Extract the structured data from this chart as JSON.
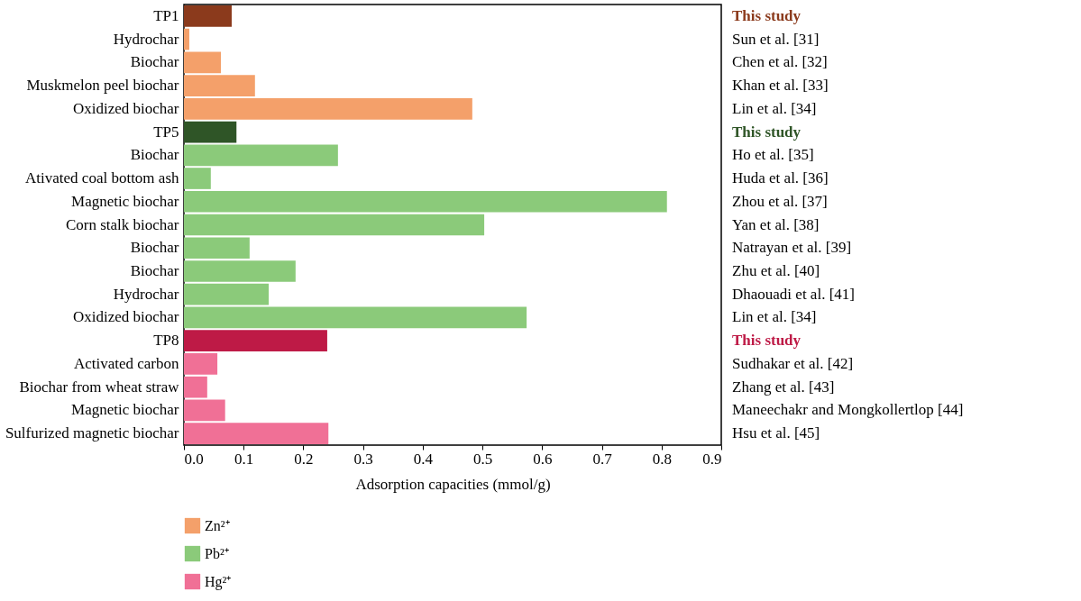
{
  "chart_data": {
    "type": "bar",
    "orientation": "horizontal",
    "xlabel": "Adsorption capacities (mmol/g)",
    "categories": [
      "TP1",
      "Hydrochar",
      "Biochar",
      "Muskmelon peel biochar",
      "Oxidized biochar",
      "TP5",
      "Biochar",
      "Ativated coal bottom ash",
      "Magnetic biochar",
      "Corn stalk biochar",
      "Biochar",
      "Biochar",
      "Hydrochar",
      "Oxidized biochar",
      "TP8",
      "Activated carbon",
      "Biochar from wheat straw",
      "Magnetic biochar",
      "Sulfurized magnetic biochar"
    ],
    "y2_categories": [
      "This study",
      "Sun et al. [31]",
      "Chen et al. [32]",
      "Khan et al. [33]",
      "Lin et al. [34]",
      "This study",
      "Ho et al. [35]",
      "Huda et al. [36]",
      "Zhou et al. [37]",
      "Yan et al. [38]",
      "Natrayan et al. [39]",
      "Zhu et al. [40]",
      "Dhaouadi et al. [41]",
      "Lin et al. [34]",
      "This study",
      "Sudhakar et al. [42]",
      "Zhang et al. [43]",
      "Maneechakr and Mongkollertlop [44]",
      "Hsu et al. [45]"
    ],
    "series": [
      {
        "name": "Zn²⁺",
        "color": "#f4a06a",
        "colors": [
          "#8b3a1c",
          "#f4a06a",
          "#f4a06a",
          "#f4a06a",
          "#f4a06a",
          null,
          null,
          null,
          null,
          null,
          null,
          null,
          null,
          null,
          null,
          null,
          null,
          null,
          null
        ],
        "values": [
          0.08,
          0.009,
          0.062,
          0.119,
          0.483,
          null,
          null,
          null,
          null,
          null,
          null,
          null,
          null,
          null,
          null,
          null,
          null,
          null,
          null
        ]
      },
      {
        "name": "Pb²⁺",
        "color": "#8bca7a",
        "colors": [
          null,
          null,
          null,
          null,
          null,
          "#2f5527",
          "#8bca7a",
          "#8bca7a",
          "#8bca7a",
          "#8bca7a",
          "#8bca7a",
          "#8bca7a",
          "#8bca7a",
          "#8bca7a",
          null,
          null,
          null,
          null,
          null
        ],
        "values": [
          null,
          null,
          null,
          null,
          null,
          0.088,
          0.258,
          0.045,
          0.809,
          0.503,
          0.11,
          0.187,
          0.142,
          0.574,
          null,
          null,
          null,
          null,
          null
        ]
      },
      {
        "name": "Hg²⁺",
        "color": "#f07096",
        "colors": [
          null,
          null,
          null,
          null,
          null,
          null,
          null,
          null,
          null,
          null,
          null,
          null,
          null,
          null,
          "#be1a46",
          "#f07096",
          "#f07096",
          "#f07096",
          "#f07096"
        ],
        "values": [
          null,
          null,
          null,
          null,
          null,
          null,
          null,
          null,
          null,
          null,
          null,
          null,
          null,
          null,
          0.24,
          0.056,
          0.039,
          0.069,
          0.242
        ]
      }
    ],
    "xlim": [
      0,
      0.9
    ],
    "xticks": [
      {
        "value": 0,
        "label": "0.0"
      },
      0.1,
      0.2,
      0.3,
      0.4,
      0.5,
      0.6,
      0.7,
      0.8,
      0.9
    ],
    "grid": false,
    "legend": "bottom left"
  }
}
